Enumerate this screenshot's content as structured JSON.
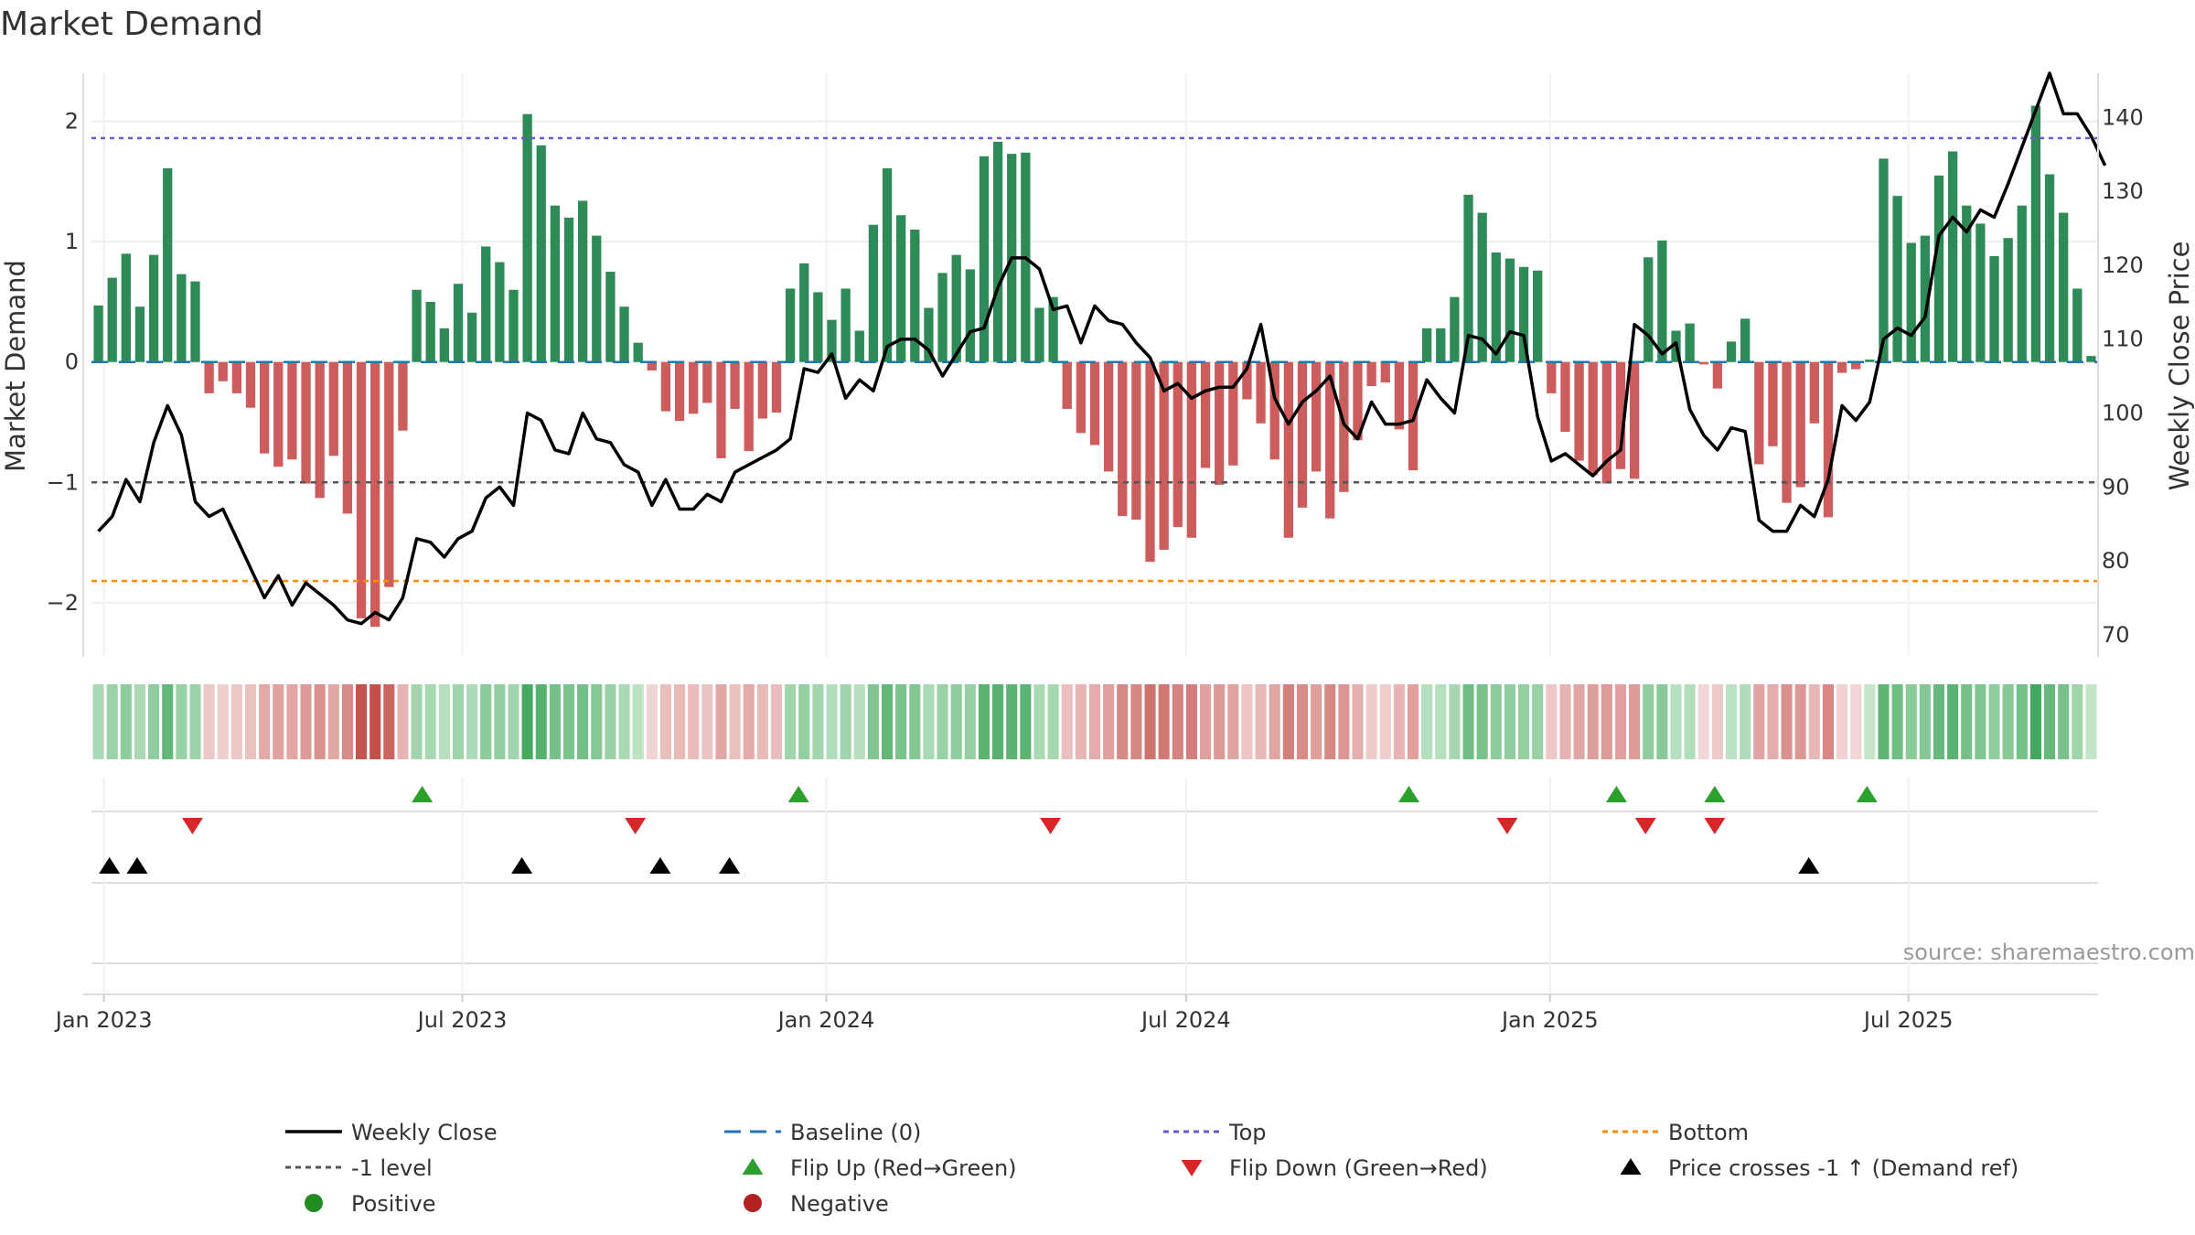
{
  "chart_data": {
    "type": "bar",
    "title": "Market Demand",
    "ylabel": "Market Demand",
    "y2label": "Weekly Close Price",
    "source": "source: sharemaestro.com",
    "ylim": [
      -2.45,
      2.4
    ],
    "y_ticks": [
      "2",
      "1",
      "0",
      "−1",
      "−2"
    ],
    "y_tick_values": [
      2,
      1,
      0,
      -1,
      -2
    ],
    "y2lim": [
      67,
      146
    ],
    "y2_ticks": [
      "140",
      "130",
      "120",
      "110",
      "100",
      "90",
      "80",
      "70"
    ],
    "y2_tick_values": [
      140,
      130,
      120,
      110,
      100,
      90,
      80,
      70
    ],
    "x_ticks": [
      "Jan 2023",
      "Jul 2023",
      "Jan 2024",
      "Jul 2024",
      "Jan 2025",
      "Jul 2025"
    ],
    "x_tick_weeks": [
      0.4,
      26.3,
      52.6,
      78.6,
      104.9,
      130.8
    ],
    "levels": {
      "top": 1.86,
      "bottom": -1.82,
      "minus_one": -1
    },
    "colors": {
      "positive": "#2e8b57",
      "negative": "#cd5c5c",
      "price": "#000000",
      "baseline": "#1f77b4",
      "top": "#6a5acd",
      "bottom": "#ff8c00",
      "minus_one": "#555555",
      "flip_up": "#2ca02c",
      "flip_down": "#d62728"
    },
    "demand": [
      0.47,
      0.7,
      0.9,
      0.46,
      0.89,
      1.61,
      0.73,
      0.67,
      -0.26,
      -0.16,
      -0.26,
      -0.38,
      -0.76,
      -0.87,
      -0.81,
      -1.01,
      -1.13,
      -0.78,
      -1.26,
      -2.13,
      -2.2,
      -1.87,
      -0.57,
      0.6,
      0.5,
      0.28,
      0.65,
      0.41,
      0.96,
      0.83,
      0.6,
      2.06,
      1.8,
      1.3,
      1.2,
      1.34,
      1.05,
      0.75,
      0.46,
      0.16,
      -0.07,
      -0.41,
      -0.49,
      -0.43,
      -0.34,
      -0.8,
      -0.39,
      -0.74,
      -0.47,
      -0.42,
      0.61,
      0.82,
      0.58,
      0.35,
      0.61,
      0.26,
      1.14,
      1.61,
      1.22,
      1.1,
      0.45,
      0.74,
      0.89,
      0.77,
      1.71,
      1.83,
      1.73,
      1.74,
      0.45,
      0.54,
      -0.39,
      -0.59,
      -0.69,
      -0.91,
      -1.28,
      -1.31,
      -1.66,
      -1.56,
      -1.37,
      -1.46,
      -0.88,
      -1.02,
      -0.86,
      -0.31,
      -0.51,
      -0.81,
      -1.46,
      -1.21,
      -0.91,
      -1.3,
      -1.08,
      -0.65,
      -0.2,
      -0.17,
      -0.56,
      -0.9,
      0.28,
      0.28,
      0.54,
      1.39,
      1.24,
      0.91,
      0.86,
      0.79,
      0.76,
      -0.26,
      -0.58,
      -0.82,
      -0.94,
      -1.01,
      -0.89,
      -0.97,
      0.87,
      1.01,
      0.26,
      0.32,
      -0.02,
      -0.22,
      0.17,
      0.36,
      -0.85,
      -0.7,
      -1.17,
      -1.04,
      -0.51,
      -1.29,
      -0.09,
      -0.06,
      0.02,
      1.69,
      1.38,
      0.99,
      1.05,
      1.55,
      1.75,
      1.3,
      1.15,
      0.88,
      1.03,
      1.3,
      2.13,
      1.56,
      1.24,
      0.61,
      0.05
    ],
    "price": [
      84,
      86,
      91,
      88,
      96,
      101,
      97,
      88,
      86,
      87,
      83,
      79,
      75,
      78,
      74,
      77,
      75.5,
      74,
      72,
      71.5,
      73,
      72,
      75,
      83,
      82.5,
      80.5,
      83,
      84,
      88.5,
      90,
      87.5,
      100,
      99,
      95,
      94.5,
      100,
      96.5,
      96,
      93,
      92,
      87.5,
      91,
      87,
      87,
      89,
      88,
      92,
      93,
      94,
      95,
      96.5,
      106,
      105.5,
      108,
      102,
      104.5,
      103,
      109,
      110,
      110,
      108.5,
      105,
      108,
      111,
      111.5,
      117,
      121,
      121,
      119.5,
      114,
      114.5,
      109.5,
      114.5,
      112.5,
      112,
      109.5,
      107.5,
      103,
      104,
      102,
      103,
      103.5,
      103.5,
      106,
      112,
      102,
      98.5,
      101.5,
      103,
      105,
      98.5,
      96.5,
      101.5,
      98.5,
      98.5,
      99,
      104.5,
      102,
      100,
      110.5,
      110,
      108,
      111,
      110.5,
      99.5,
      93.5,
      94.5,
      93,
      91.5,
      93.5,
      95,
      112,
      110.5,
      108,
      109.5,
      100.5,
      97,
      95,
      98,
      97.5,
      85.5,
      84,
      84,
      87.5,
      86,
      91,
      101,
      99,
      101.5,
      110,
      111.5,
      110.5,
      113,
      124,
      126.5,
      124.5,
      127.5,
      126.5,
      131,
      136,
      141,
      146,
      140.5,
      140.5,
      137.5,
      133.5
    ],
    "flip_up_weeks": [
      23.4,
      50.6,
      94.7,
      109.7,
      116.8,
      127.8
    ],
    "flip_down_weeks": [
      6.8,
      38.8,
      68.8,
      101.8,
      111.8,
      116.8
    ],
    "price_cross_weeks": [
      0.8,
      2.8,
      30.6,
      40.6,
      45.6,
      123.6
    ],
    "legend": [
      "Weekly Close",
      "Baseline (0)",
      "Top",
      "Bottom",
      "-1 level",
      "Flip Up (Red→Green)",
      "Flip Down (Green→Red)",
      "Price crosses -1 ↑ (Demand ref)",
      "Positive",
      "Negative"
    ],
    "legend_position": "bottom"
  }
}
